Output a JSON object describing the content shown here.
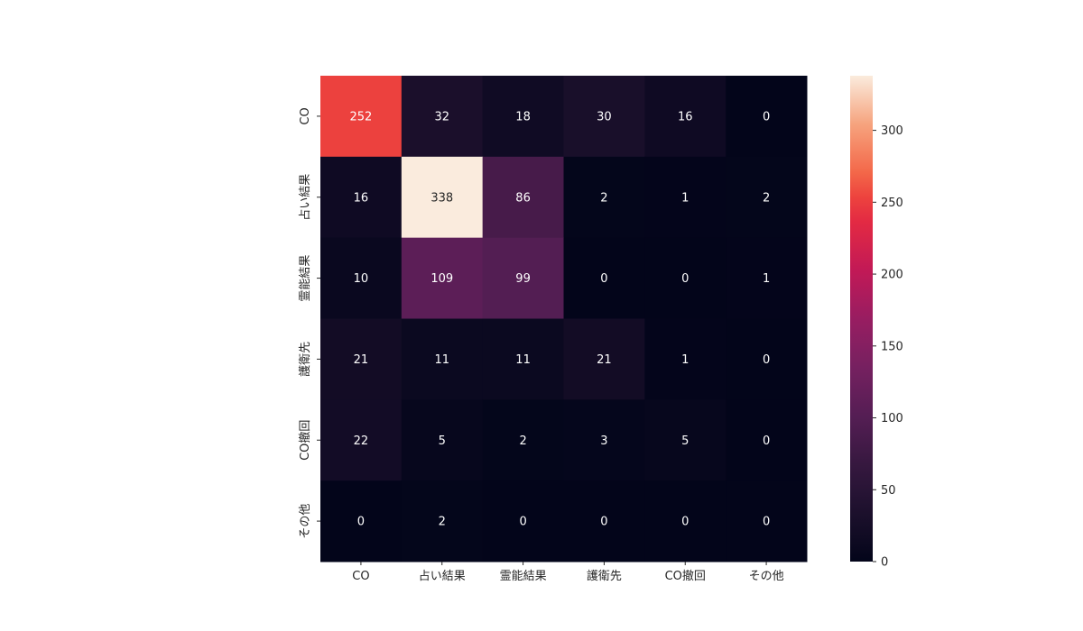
{
  "chart_data": {
    "type": "heatmap",
    "title": "",
    "xlabel": "",
    "ylabel": "",
    "x_categories": [
      "CO",
      "占い結果",
      "霊能結果",
      "護衛先",
      "CO撤回",
      "その他"
    ],
    "y_categories": [
      "CO",
      "占い結果",
      "霊能結果",
      "護衛先",
      "CO撤回",
      "その他"
    ],
    "values": [
      [
        252,
        32,
        18,
        30,
        16,
        0
      ],
      [
        16,
        338,
        86,
        2,
        1,
        2
      ],
      [
        10,
        109,
        99,
        0,
        0,
        1
      ],
      [
        21,
        11,
        11,
        21,
        1,
        0
      ],
      [
        22,
        5,
        2,
        3,
        5,
        0
      ],
      [
        0,
        2,
        0,
        0,
        0,
        0
      ]
    ],
    "colorbar": {
      "range": [
        0,
        338
      ],
      "ticks": [
        "0",
        "50",
        "100",
        "150",
        "200",
        "250",
        "300"
      ],
      "colormap": "rocket"
    },
    "grid": false,
    "legend": "colorbar-right"
  }
}
